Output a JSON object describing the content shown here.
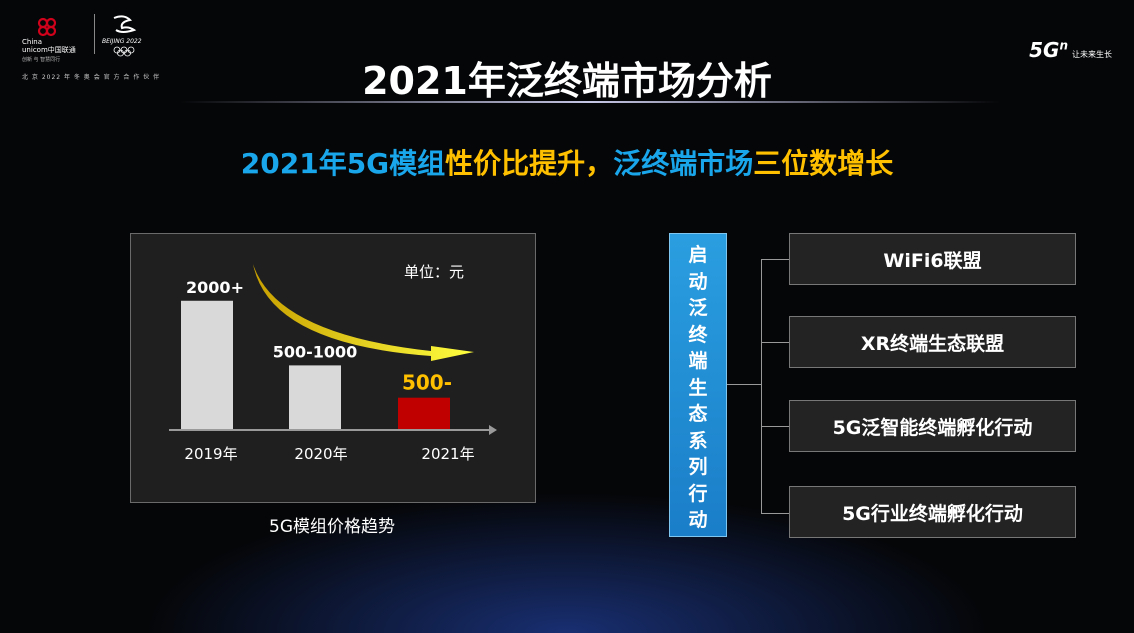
{
  "header": {
    "unicom_brand_en1": "China",
    "unicom_brand_en2": "unicom中国联通",
    "unicom_sub": "创新 与 智慧同行",
    "beijing_text": "BEIJING 2022",
    "partner_tagline": "北 京 2022 年 冬 奥 会 官 方 合 作 伙 伴",
    "brand_5g": "5G",
    "brand_sup": "n",
    "brand_slogan": "让未来生长"
  },
  "title": "2021年泛终端市场分析",
  "subtitle": {
    "part1": "2021年5G模组",
    "part2": "性价比提升，",
    "part3": "泛终端市场",
    "part4": "三位数增长"
  },
  "chart_data": {
    "type": "bar",
    "categories": [
      "2019年",
      "2020年",
      "2021年"
    ],
    "values": [
      2000,
      1000,
      500
    ],
    "value_labels": [
      "2000+",
      "500-1000",
      "500-"
    ],
    "unit_label": "单位：元",
    "title": "5G模组价格趋势",
    "bar_colors": [
      "#d9d9d9",
      "#d9d9d9",
      "#c00000"
    ],
    "label_colors": [
      "#ffffff",
      "#ffffff",
      "#ffc000"
    ],
    "ylim": [
      0,
      2600
    ]
  },
  "ecosystem": {
    "vertical_label": "启动泛终端生态系列行动",
    "initiatives": [
      "WiFi6联盟",
      "XR终端生态联盟",
      "5G泛智能终端孵化行动",
      "5G行业终端孵化行动"
    ]
  },
  "colors": {
    "accent_blue": "#1aa6ea",
    "accent_gold": "#ffc000",
    "bar_red": "#c00000"
  }
}
